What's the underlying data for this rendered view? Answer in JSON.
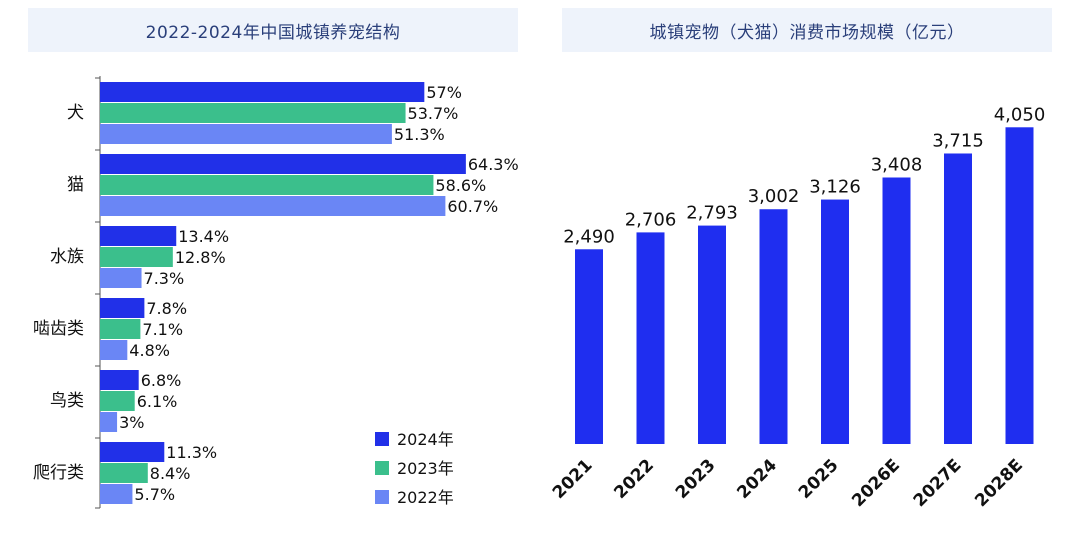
{
  "chart_data": [
    {
      "type": "bar",
      "orientation": "horizontal",
      "title": "2022-2024年中国城镇养宠结构",
      "categories": [
        "犬",
        "猫",
        "水族",
        "啮齿类",
        "鸟类",
        "爬行类"
      ],
      "series": [
        {
          "name": "2024年",
          "color": "#2130e8",
          "values": [
            57,
            64.3,
            13.4,
            7.8,
            6.8,
            11.3
          ]
        },
        {
          "name": "2023年",
          "color": "#3bbf8c",
          "values": [
            53.7,
            58.6,
            12.8,
            7.1,
            6.1,
            8.4
          ]
        },
        {
          "name": "2022年",
          "color": "#6a86f5",
          "values": [
            51.3,
            60.7,
            7.3,
            4.8,
            3,
            5.7
          ]
        }
      ],
      "unit": "%",
      "legend": "bottom-right",
      "grid": false
    },
    {
      "type": "bar",
      "title": "城镇宠物（犬猫）消费市场规模（亿元）",
      "categories": [
        "2021",
        "2022",
        "2023",
        "2024",
        "2025",
        "2026E",
        "2027E",
        "2028E"
      ],
      "values": [
        2490,
        2706,
        2793,
        3002,
        3126,
        3408,
        3715,
        4050
      ],
      "value_labels": [
        "2,490",
        "2,706",
        "2,793",
        "3,002",
        "3,126",
        "3,408",
        "3,715",
        "4,050"
      ],
      "color": "#1f2ef0",
      "grid": false
    }
  ]
}
